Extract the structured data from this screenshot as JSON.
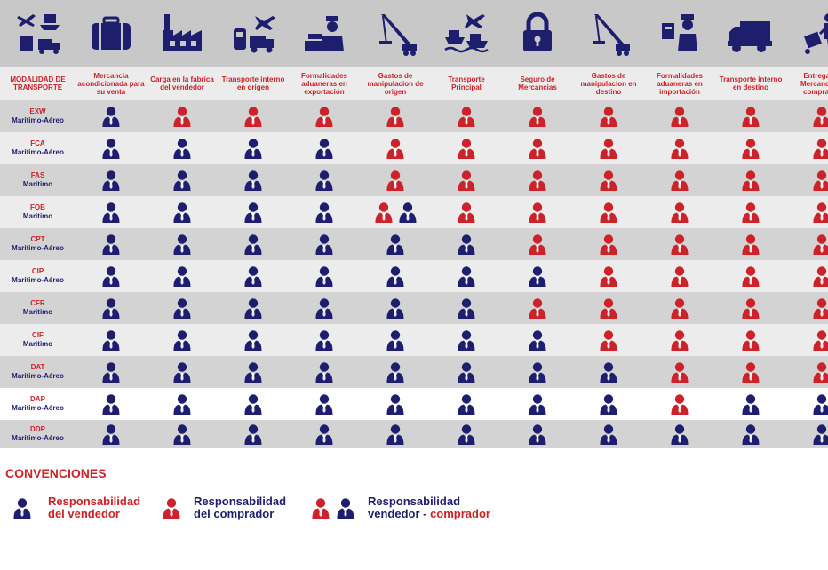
{
  "header": {
    "first_column_label": "MODALIDAD DE TRANSPORTE",
    "columns": [
      {
        "label": "Mercancia acondicionada para su venta",
        "icon": "suitcase-icon"
      },
      {
        "label": "Carga en la fabrica del vendedor",
        "icon": "factory-icon"
      },
      {
        "label": "Transporte interno en origen",
        "icon": "train-truck-plane-icon"
      },
      {
        "label": "Formalidades aduaneras en exportación",
        "icon": "customs-officer-icon"
      },
      {
        "label": "Gastos de manipulacion de origen",
        "icon": "crane-icon"
      },
      {
        "label": "Transporte Principal",
        "icon": "ship-plane-icon"
      },
      {
        "label": "Seguro de Mercancias",
        "icon": "padlock-icon"
      },
      {
        "label": "Gastos de manipulacion en destino",
        "icon": "crane-icon"
      },
      {
        "label": "Formalidades aduaneras en importación",
        "icon": "customs-inspection-icon"
      },
      {
        "label": "Transporte interno en destino",
        "icon": "truck-icon"
      },
      {
        "label": "Entrega de Mercancia al comprador",
        "icon": "delivery-person-icon"
      }
    ],
    "corner_icon": "transport-modes-icon"
  },
  "rows": [
    {
      "code": "EXW",
      "mode": "Maritimo-Aéreo",
      "cells": [
        "V",
        "C",
        "C",
        "C",
        "C",
        "C",
        "C",
        "C",
        "C",
        "C",
        "C"
      ]
    },
    {
      "code": "FCA",
      "mode": "Maritimo-Aéreo",
      "cells": [
        "V",
        "V",
        "V",
        "V",
        "C",
        "C",
        "C",
        "C",
        "C",
        "C",
        "C"
      ]
    },
    {
      "code": "FAS",
      "mode": "Maritimo",
      "cells": [
        "V",
        "V",
        "V",
        "V",
        "C",
        "C",
        "C",
        "C",
        "C",
        "C",
        "C"
      ]
    },
    {
      "code": "FOB",
      "mode": "Maritimo",
      "cells": [
        "V",
        "V",
        "V",
        "V",
        "CV",
        "C",
        "C",
        "C",
        "C",
        "C",
        "C"
      ]
    },
    {
      "code": "CPT",
      "mode": "Maritimo-Aéreo",
      "cells": [
        "V",
        "V",
        "V",
        "V",
        "V",
        "V",
        "C",
        "C",
        "C",
        "C",
        "C"
      ]
    },
    {
      "code": "CIP",
      "mode": "Maritimo-Aéreo",
      "cells": [
        "V",
        "V",
        "V",
        "V",
        "V",
        "V",
        "V",
        "C",
        "C",
        "C",
        "C"
      ]
    },
    {
      "code": "CFR",
      "mode": "Maritimo",
      "cells": [
        "V",
        "V",
        "V",
        "V",
        "V",
        "V",
        "C",
        "C",
        "C",
        "C",
        "C"
      ]
    },
    {
      "code": "CIF",
      "mode": "Maritimo",
      "cells": [
        "V",
        "V",
        "V",
        "V",
        "V",
        "V",
        "V",
        "C",
        "C",
        "C",
        "C"
      ]
    },
    {
      "code": "DAT",
      "mode": "Maritimo-Aéreo",
      "cells": [
        "V",
        "V",
        "V",
        "V",
        "V",
        "V",
        "V",
        "V",
        "C",
        "C",
        "C"
      ]
    },
    {
      "code": "DAP",
      "mode": "Maritimo-Aéreo",
      "cells": [
        "V",
        "V",
        "V",
        "V",
        "V",
        "V",
        "V",
        "V",
        "C",
        "V",
        "V"
      ]
    },
    {
      "code": "DDP",
      "mode": "Maritimo-Aéreo",
      "cells": [
        "V",
        "V",
        "V",
        "V",
        "V",
        "V",
        "V",
        "V",
        "V",
        "V",
        "V"
      ]
    }
  ],
  "legend": {
    "title": "CONVENCIONES",
    "seller": {
      "line1": "Responsabilidad",
      "line2": "del vendedor"
    },
    "buyer": {
      "line1": "Responsabilidad",
      "line2": "del comprador"
    },
    "both": {
      "line1": "Responsabilidad",
      "line2a": "vendedor - ",
      "line2b": "comprador"
    }
  },
  "colors": {
    "seller": "#1e1e6e",
    "buyer": "#cc2229",
    "row_dark": "#d3d3d3",
    "row_light": "#ececec",
    "row_white": "#ffffff",
    "icon_band": "#c8c8c8"
  }
}
